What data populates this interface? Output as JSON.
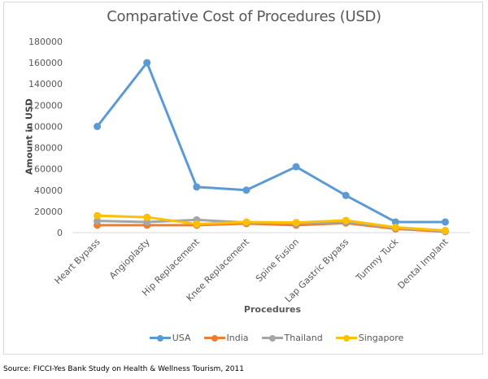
{
  "source_note": "Source: FICCI-Yes Bank Study on Health & Wellness Tourism, 2011",
  "chart_data": {
    "type": "line",
    "title": "Comparative Cost of Procedures (USD)",
    "xlabel": "Procedures",
    "ylabel": "Amount in USD",
    "ylim": [
      0,
      180000
    ],
    "yticks": [
      0,
      20000,
      40000,
      60000,
      80000,
      100000,
      120000,
      140000,
      160000,
      180000
    ],
    "ytick_labels": [
      "0",
      "20000",
      "40000",
      "60000",
      "80000",
      "100000",
      "120000",
      "140000",
      "160000",
      "180000"
    ],
    "grid": false,
    "legend_position": "bottom",
    "categories": [
      "Heart Bypass",
      "Angioplasty",
      "Hip Replacement",
      "Knee Replacement",
      "Spine Fusion",
      "Lap Gastric Bypass",
      "Tummy Tuck",
      "Dental Implant"
    ],
    "series": [
      {
        "name": "USA",
        "color": "#5b9bd5",
        "values": [
          100000,
          160000,
          43000,
          40000,
          62000,
          35000,
          10000,
          10000
        ]
      },
      {
        "name": "India",
        "color": "#ed7d31",
        "values": [
          7000,
          7000,
          7000,
          8500,
          7000,
          9000,
          3500,
          1000
        ]
      },
      {
        "name": "Thailand",
        "color": "#a5a5a5",
        "values": [
          11000,
          10000,
          12000,
          9500,
          8500,
          10000,
          4500,
          1500
        ]
      },
      {
        "name": "Singapore",
        "color": "#ffc000",
        "values": [
          16000,
          14500,
          8000,
          10000,
          9500,
          11500,
          5000,
          2000
        ]
      }
    ]
  }
}
